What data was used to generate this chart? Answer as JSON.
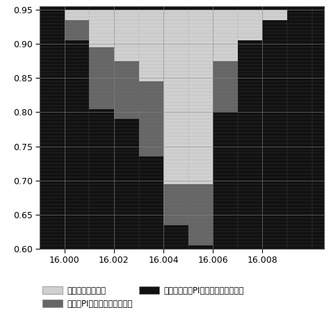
{
  "x_min": 15.999,
  "x_max": 16.0105,
  "y_min": 0.6,
  "y_max": 0.95,
  "xticks": [
    16.0,
    16.002,
    16.004,
    16.006,
    16.008
  ],
  "yticks": [
    0.6,
    0.65,
    0.7,
    0.75,
    0.8,
    0.85,
    0.9,
    0.95
  ],
  "background_color": "#111111",
  "color_no_failure": "#d0d0d0",
  "color_traditional": "#666666",
  "grid_color": "#aaaaaa",
  "legend_labels": [
    "为未发生换相失败",
    "为传统PI控制器发生换相失败",
    "为加入自适应PI控制器发生换相失败"
  ],
  "legend_fontsize": 8.5,
  "tick_fontsize": 9,
  "x_lefts": [
    15.999,
    16.0,
    16.001,
    16.002,
    16.003,
    16.004,
    16.005,
    16.006,
    16.007,
    16.008,
    16.009
  ],
  "x_rights": [
    16.0,
    16.001,
    16.002,
    16.003,
    16.004,
    16.005,
    16.006,
    16.007,
    16.008,
    16.009,
    16.0105
  ],
  "boundary_trad": [
    0.95,
    0.935,
    0.895,
    0.875,
    0.845,
    0.695,
    0.695,
    0.875,
    0.905,
    0.935,
    0.95
  ],
  "boundary_adapt": [
    0.95,
    0.905,
    0.805,
    0.79,
    0.735,
    0.635,
    0.605,
    0.8,
    0.95,
    0.95,
    0.95
  ]
}
